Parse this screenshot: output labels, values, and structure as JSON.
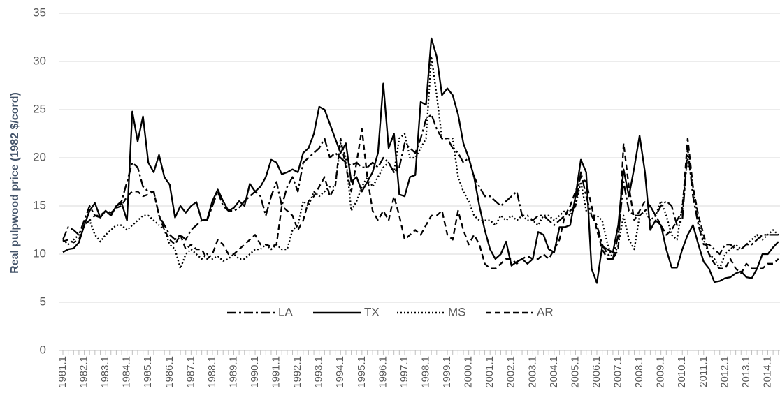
{
  "chart_data": {
    "type": "line",
    "y_label": "Real pulpwood price (1982 $/cord)",
    "categories": [
      "1981.1",
      null,
      null,
      null,
      "1982.1",
      null,
      null,
      null,
      "1983.1",
      null,
      null,
      null,
      "1984.1",
      null,
      null,
      null,
      "1985.1",
      null,
      null,
      null,
      "1986.1",
      null,
      null,
      null,
      "1987.1",
      null,
      null,
      null,
      "1988.1",
      null,
      null,
      null,
      "1989.1",
      null,
      null,
      null,
      "1990.1",
      null,
      null,
      null,
      "1991.1",
      null,
      null,
      null,
      "1992.1",
      null,
      null,
      null,
      "1993.1",
      null,
      null,
      null,
      "1994.1",
      null,
      null,
      null,
      "1995.1",
      null,
      null,
      null,
      "1996.1",
      null,
      null,
      null,
      "1997.1",
      null,
      null,
      null,
      "1998.1",
      null,
      null,
      null,
      "1999.1",
      null,
      null,
      null,
      "2000.1",
      null,
      null,
      null,
      "2001.1",
      null,
      null,
      null,
      "2002.1",
      null,
      null,
      null,
      "2003.1",
      null,
      null,
      null,
      "2004.1",
      null,
      null,
      null,
      "2005.1",
      null,
      null,
      null,
      "2006.1",
      null,
      null,
      null,
      "2007.1",
      null,
      null,
      null,
      "2008.1",
      null,
      null,
      null,
      "2009.1",
      null,
      null,
      null,
      "2010.1",
      null,
      null,
      null,
      "2011.1",
      null,
      null,
      null,
      "2012.1",
      null,
      null,
      null,
      "2013.1",
      null,
      null,
      null,
      "2014.1",
      null,
      null
    ],
    "series": [
      {
        "name": "LA",
        "color": "#000000",
        "values": [
          11.5,
          12.8,
          12.5,
          12,
          13.5,
          15,
          14,
          13.8,
          14.5,
          14,
          15,
          15.5,
          17.5,
          19.5,
          19,
          17,
          16.5,
          16.5,
          14,
          13,
          12,
          11.5,
          12,
          11.5,
          12.5,
          13,
          13.5,
          13.5,
          15,
          16.5,
          15,
          14.5,
          14.5,
          14.8,
          15.5,
          16,
          16.5,
          16,
          14,
          16,
          17.5,
          15,
          17,
          18,
          16.5,
          19.5,
          20,
          20.5,
          21,
          22,
          20,
          20.5,
          20,
          19.5,
          19.2,
          19.5,
          19,
          19,
          19.5,
          19,
          20,
          19.5,
          18.5,
          19,
          21.5,
          21,
          20.5,
          22,
          24,
          24.5,
          23,
          22,
          22,
          21,
          20.5,
          19.5,
          20,
          18,
          17,
          16,
          16,
          15.5,
          15,
          15.5,
          16,
          16.5,
          14,
          14,
          13.5,
          14,
          14,
          13.5,
          13,
          13.5,
          14,
          14.5,
          15,
          18.5,
          16,
          14,
          13,
          11,
          10,
          9.5,
          12,
          17.5,
          14.5,
          14,
          14,
          14.5,
          15,
          14,
          15,
          15.5,
          15,
          13,
          13.5,
          21,
          16,
          13,
          11,
          11,
          10.5,
          10,
          11,
          11,
          10.5,
          10.5,
          11,
          11,
          11.5,
          12,
          12,
          12,
          12
        ]
      },
      {
        "name": "TX",
        "color": "#000000",
        "values": [
          10.2,
          10.5,
          10.6,
          11.2,
          13,
          14.5,
          15.3,
          13.8,
          14.5,
          14,
          15,
          15.3,
          13.5,
          24.8,
          21.7,
          24.3,
          19.5,
          18.5,
          20.3,
          18,
          17.2,
          13.8,
          15,
          14.3,
          15,
          15.4,
          13.5,
          13.6,
          15.5,
          16.7,
          15.5,
          14.5,
          14.8,
          15.5,
          15,
          17.3,
          16.5,
          17,
          18,
          19.8,
          19.5,
          18.3,
          18.5,
          18.8,
          18.5,
          20.5,
          21,
          22.5,
          25.3,
          25,
          23.5,
          22,
          20.5,
          21.5,
          17.5,
          18,
          16.5,
          17.5,
          18.5,
          20.5,
          27.7,
          21,
          22.5,
          16.2,
          16,
          18,
          18.2,
          25.8,
          25.5,
          32.4,
          30.5,
          26.5,
          27.2,
          26.5,
          24.5,
          21.5,
          20,
          18,
          15,
          12.5,
          10.5,
          9.5,
          10,
          11.3,
          8.8,
          9.2,
          9.5,
          9,
          9.5,
          12.3,
          12,
          10.5,
          10.2,
          12.8,
          12.8,
          13,
          16,
          19.8,
          18.5,
          8.5,
          7,
          10.8,
          10.5,
          10.2,
          13,
          18.8,
          16,
          19,
          22.3,
          18.5,
          12.5,
          13.5,
          13,
          10.5,
          8.6,
          8.6,
          10.5,
          12,
          13,
          11,
          9.2,
          8.5,
          7.1,
          7.2,
          7.5,
          7.6,
          8,
          8.2,
          7.6,
          7.5,
          8.5,
          10,
          10,
          10.7,
          11.3
        ]
      },
      {
        "name": "MS",
        "color": "#000000",
        "values": [
          11.5,
          11,
          11.5,
          12,
          13,
          13.5,
          12,
          11.3,
          12,
          12.5,
          13,
          13,
          12.5,
          13,
          13.5,
          14,
          14,
          13.5,
          13,
          12.5,
          11,
          10.5,
          8.5,
          10,
          10.5,
          10,
          9.5,
          10,
          9.5,
          9.8,
          9.3,
          9.5,
          10,
          9.5,
          9.5,
          10,
          10.5,
          10.5,
          11,
          10.5,
          11,
          10.5,
          10.5,
          12.5,
          13,
          15.5,
          15,
          16.5,
          16,
          16.5,
          17,
          17,
          21.5,
          20,
          14.5,
          15.5,
          17,
          18,
          17,
          18,
          19,
          19.5,
          18.5,
          22,
          22.5,
          20,
          20,
          21,
          22,
          30.5,
          26.5,
          22,
          22,
          22,
          18,
          16.5,
          15.5,
          14,
          13.5,
          13.5,
          13.5,
          13,
          14,
          13.5,
          14,
          13.5,
          14,
          13.5,
          13.5,
          13,
          14,
          14,
          13.5,
          14,
          14.5,
          14,
          15,
          17.5,
          14.5,
          14,
          14,
          13.5,
          11,
          9.5,
          11,
          14,
          11.5,
          10.5,
          14,
          14.5,
          13.5,
          14,
          15.5,
          14,
          12,
          11.5,
          15,
          20,
          17,
          13.5,
          11.5,
          10,
          9.5,
          8.5,
          10,
          10.5,
          11,
          10.5,
          11,
          11.5,
          12,
          11.5,
          12,
          12.5,
          12
        ]
      },
      {
        "name": "AR",
        "color": "#000000",
        "values": [
          11.3,
          11.5,
          11.2,
          11.5,
          13,
          13.5,
          14,
          14,
          14.5,
          14.3,
          14.8,
          15,
          16,
          16.5,
          16.5,
          16,
          16.2,
          16.5,
          14,
          12.5,
          11.5,
          11,
          12,
          10.5,
          11,
          10.5,
          10.5,
          9.5,
          10,
          11.5,
          11,
          10,
          10,
          10.5,
          11,
          11.5,
          12,
          11,
          11,
          10.8,
          11,
          15,
          14.5,
          14,
          12.5,
          13.5,
          15.5,
          16,
          17,
          18,
          16,
          17,
          22,
          19,
          16.5,
          19.5,
          23,
          18,
          14.5,
          13.5,
          14.5,
          13.5,
          16,
          14,
          11.5,
          12,
          12.5,
          12,
          13,
          14,
          14,
          14.5,
          12,
          11.5,
          14.5,
          12.5,
          11,
          12,
          11,
          9,
          8.5,
          8.5,
          9,
          9.5,
          9.5,
          9,
          9.5,
          9.8,
          9.5,
          9.5,
          10,
          9.5,
          10.5,
          11.5,
          14,
          15,
          16.5,
          18,
          17.5,
          15,
          12.5,
          10.5,
          9.5,
          9.5,
          10.5,
          21.5,
          17,
          13.5,
          14.5,
          15.5,
          15,
          14,
          13,
          12,
          12.5,
          13.5,
          14.5,
          22,
          17,
          14,
          12,
          10,
          9,
          8.5,
          8.5,
          9.5,
          8.5,
          8,
          9,
          8.5,
          8.5,
          8.5,
          9,
          9,
          9.5
        ]
      }
    ],
    "ylim": [
      0,
      35
    ],
    "yticks": [
      0,
      5,
      10,
      15,
      20,
      25,
      30,
      35
    ],
    "grid": true
  }
}
